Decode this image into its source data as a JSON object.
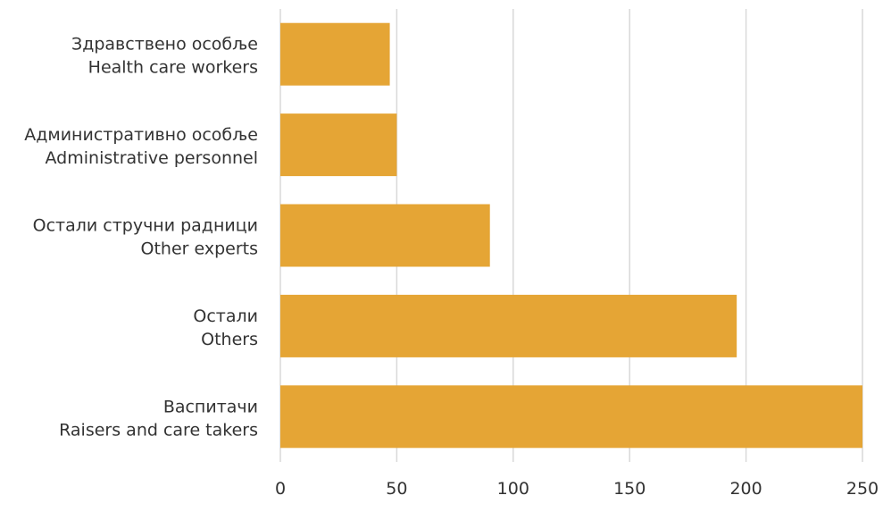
{
  "chart_data": {
    "type": "bar",
    "orientation": "horizontal",
    "title": "",
    "xlabel": "",
    "ylabel": "",
    "categories": [
      {
        "line1": "Здравствено особље",
        "line2": "Health care workers"
      },
      {
        "line1": "Административно особље",
        "line2": "Administrative personnel"
      },
      {
        "line1": "Остали стручни радници",
        "line2": "Other experts"
      },
      {
        "line1": "Остали",
        "line2": "Others"
      },
      {
        "line1": "Васпитачи",
        "line2": "Raisers and care takers"
      }
    ],
    "values": [
      47,
      50,
      90,
      196,
      250
    ],
    "xlim": [
      0,
      250
    ],
    "x_ticks": [
      "0",
      "50",
      "100",
      "150",
      "200",
      "250"
    ],
    "grid": "vertical",
    "legend": "none",
    "bar_color": "#E5A535",
    "grid_color": "#d9d9d9"
  }
}
